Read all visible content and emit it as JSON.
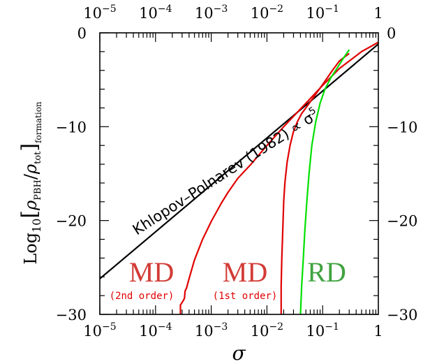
{
  "chart_data": {
    "type": "line",
    "xscale": "log",
    "xlim": [
      1e-05,
      1
    ],
    "ylim": [
      -30,
      0
    ],
    "xticks": [
      {
        "base": "10",
        "exp": "−5"
      },
      {
        "base": "10",
        "exp": "−4"
      },
      {
        "base": "10",
        "exp": "−3"
      },
      {
        "base": "10",
        "exp": "−2"
      },
      {
        "base": "10",
        "exp": "−1"
      },
      {
        "base": "1",
        "exp": ""
      }
    ],
    "yticks": [
      "0",
      "−10",
      "−20",
      "−30"
    ],
    "xlabel": "σ",
    "ylabel": {
      "log": "Log",
      "sub10": "10",
      "open": "[",
      "rho": "ρ",
      "pbh": "PBH",
      "slash": "/",
      "tot": "tot",
      "close": "]",
      "formation": "formation"
    },
    "annotation": {
      "text": "Khlopov–Polnarev (1982) ∝ σ",
      "exp": "5"
    },
    "region_labels": [
      {
        "name": "MD",
        "sub": "(2nd order)",
        "color": "#d23b35"
      },
      {
        "name": "MD",
        "sub": "(1st order)",
        "color": "#d23b35"
      },
      {
        "name": "RD",
        "sub": "",
        "color": "#3fa23f"
      }
    ],
    "series": [
      {
        "color": "#000000",
        "points": [
          [
            1e-05,
            -26.2
          ],
          [
            0.0001,
            -21.2
          ],
          [
            0.001,
            -16.2
          ],
          [
            0.01,
            -11.2
          ],
          [
            0.1,
            -6.2
          ],
          [
            1,
            -1.2
          ]
        ]
      },
      {
        "color": "#e00000",
        "points": [
          [
            0.00028,
            -30
          ],
          [
            0.00028,
            -29.0
          ],
          [
            0.00031,
            -28.6
          ],
          [
            0.00033,
            -28.3
          ],
          [
            0.00034,
            -27.5
          ],
          [
            0.00036,
            -27.2
          ],
          [
            0.0004,
            -26.2
          ],
          [
            0.0005,
            -24.2
          ],
          [
            0.0007,
            -22.0
          ],
          [
            0.001,
            -20.1
          ],
          [
            0.0015,
            -18.2
          ],
          [
            0.002,
            -17.0
          ],
          [
            0.003,
            -15.5
          ],
          [
            0.005,
            -14.1
          ],
          [
            0.01,
            -12.0
          ],
          [
            0.02,
            -10.0
          ],
          [
            0.05,
            -7.5
          ],
          [
            0.1,
            -5.6
          ],
          [
            0.2,
            -3.8
          ],
          [
            0.5,
            -2.0
          ],
          [
            1,
            -1.0
          ]
        ]
      },
      {
        "color": "#e00000",
        "points": [
          [
            0.018,
            -30
          ],
          [
            0.018,
            -27.0
          ],
          [
            0.0185,
            -24.0
          ],
          [
            0.019,
            -22.0
          ],
          [
            0.0195,
            -20.0
          ],
          [
            0.02,
            -18.0
          ],
          [
            0.021,
            -16.0
          ],
          [
            0.023,
            -13.8
          ],
          [
            0.026,
            -12.0
          ],
          [
            0.03,
            -10.5
          ],
          [
            0.035,
            -9.5
          ],
          [
            0.042,
            -8.6
          ],
          [
            0.05,
            -8.0
          ],
          [
            0.07,
            -6.8
          ],
          [
            0.1,
            -5.5
          ],
          [
            0.15,
            -4.0
          ],
          [
            0.2,
            -3.0
          ],
          [
            0.3,
            -2.2
          ]
        ]
      },
      {
        "color": "#00e000",
        "points": [
          [
            0.04,
            -30
          ],
          [
            0.042,
            -27.0
          ],
          [
            0.045,
            -24.0
          ],
          [
            0.048,
            -21.0
          ],
          [
            0.052,
            -18.0
          ],
          [
            0.057,
            -15.0
          ],
          [
            0.064,
            -12.0
          ],
          [
            0.075,
            -9.5
          ],
          [
            0.09,
            -7.5
          ],
          [
            0.11,
            -6.0
          ],
          [
            0.14,
            -4.8
          ],
          [
            0.18,
            -3.8
          ],
          [
            0.23,
            -2.8
          ],
          [
            0.3,
            -1.8
          ]
        ]
      }
    ]
  }
}
